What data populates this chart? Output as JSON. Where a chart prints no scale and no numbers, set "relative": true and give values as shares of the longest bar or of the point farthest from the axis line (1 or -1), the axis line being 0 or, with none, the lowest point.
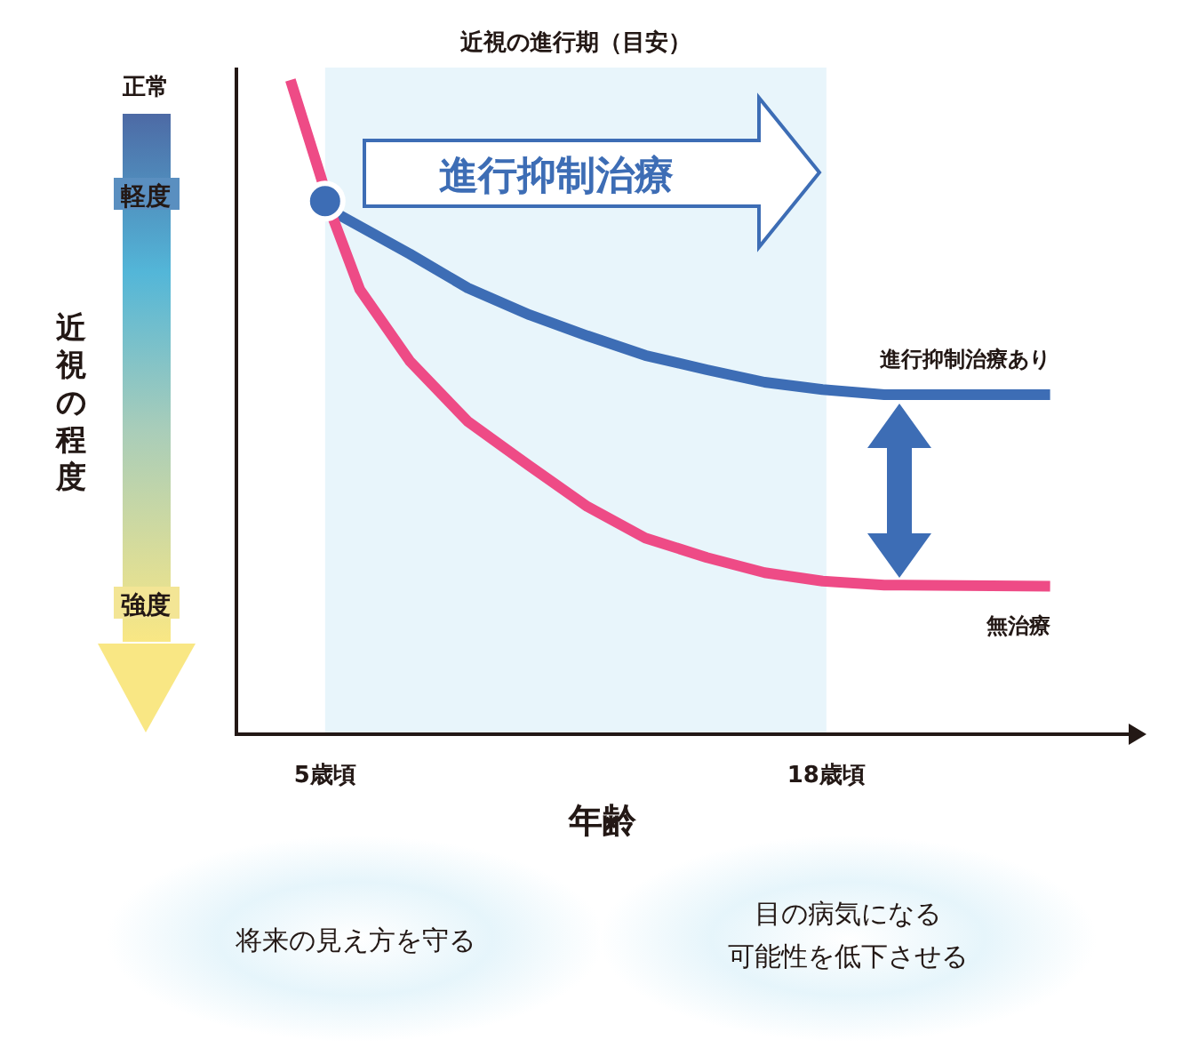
{
  "chart_data": {
    "type": "line",
    "relative": true,
    "xlabel": "年齢",
    "ylabel": "近視の程度",
    "xlim": [
      2.7,
      26.3
    ],
    "xticks": [
      {
        "value": 5,
        "label": "5歳頃"
      },
      {
        "value": 18,
        "label": "18歳頃"
      }
    ],
    "bands": [
      {
        "axis": "x",
        "from": 5,
        "to": 18,
        "label": "近視の進行期（目安）",
        "color": "#e8f5fb"
      }
    ],
    "series": [
      {
        "name": "進行抑制治療あり",
        "color": "#3d6db5",
        "x": [
          5.3,
          7.2,
          8.7,
          10.3,
          11.8,
          13.3,
          14.9,
          16.4,
          17.9,
          19.5,
          23.8
        ],
        "values": [
          0.796,
          0.734,
          0.682,
          0.641,
          0.609,
          0.579,
          0.557,
          0.538,
          0.527,
          0.519,
          0.519
        ]
      },
      {
        "name": "無治療",
        "color": "#ee4b86",
        "x": [
          4.1,
          4.9,
          5.2,
          5.9,
          7.2,
          8.7,
          10.3,
          11.8,
          13.3,
          14.9,
          16.4,
          17.9,
          19.5,
          23.8
        ],
        "values": [
          1.0,
          0.85,
          0.79,
          0.68,
          0.57,
          0.478,
          0.41,
          0.348,
          0.3,
          0.27,
          0.247,
          0.234,
          0.228,
          0.226
        ]
      },
      {
        "type": "scatter",
        "color": "#3d6db5",
        "x": [
          5
        ],
        "values": [
          0.815
        ]
      }
    ],
    "annotations": [
      "進行抑制治療",
      "正常",
      "軽度",
      "強度",
      "将来の見え方を守る",
      "目の病気になる",
      "可能性を低下させる"
    ]
  }
}
